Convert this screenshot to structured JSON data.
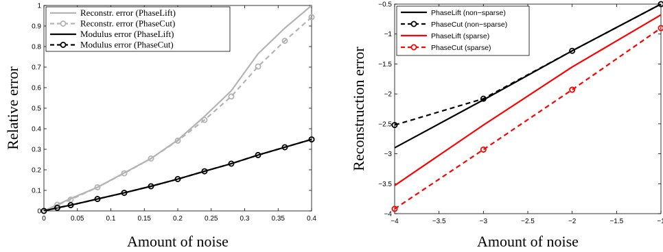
{
  "chart_data": [
    {
      "type": "line",
      "xlabel": "Amount of noise",
      "ylabel": "Relative error",
      "xlim": [
        0,
        0.4
      ],
      "ylim": [
        0,
        1
      ],
      "xticks": [
        0,
        0.05,
        0.1,
        0.15,
        0.2,
        0.25,
        0.3,
        0.35,
        0.4
      ],
      "xtick_labels": [
        "0",
        "0.05",
        "0.1",
        "0.15",
        "0.2",
        "0.25",
        "0.3",
        "0.35",
        "0.4"
      ],
      "yticks": [
        0,
        0.1,
        0.2,
        0.3,
        0.4,
        0.5,
        0.6,
        0.7,
        0.8,
        0.9,
        1
      ],
      "ytick_labels": [
        "0",
        "0.1",
        "0.2",
        "0.3",
        "0.4",
        "0.5",
        "0.6",
        "0.7",
        "0.8",
        "0.9",
        "1"
      ],
      "grid": false,
      "legend_position": "top-left",
      "series": [
        {
          "name": "Reconstr. error (PhaseLift)",
          "color": "#b3b3b3",
          "dash": "solid",
          "marker": "none",
          "x": [
            0,
            0.02,
            0.04,
            0.08,
            0.12,
            0.16,
            0.2,
            0.24,
            0.28,
            0.32,
            0.36,
            0.4
          ],
          "y": [
            0,
            0.03,
            0.06,
            0.115,
            0.185,
            0.255,
            0.345,
            0.46,
            0.585,
            0.765,
            0.89,
            1.0
          ]
        },
        {
          "name": "Reconstr. error (PhaseCut)",
          "color": "#b3b3b3",
          "dash": "dashed",
          "marker": "circle",
          "x": [
            0,
            0.02,
            0.04,
            0.08,
            0.12,
            0.16,
            0.2,
            0.24,
            0.28,
            0.32,
            0.36,
            0.4
          ],
          "y": [
            0,
            0.03,
            0.055,
            0.115,
            0.183,
            0.255,
            0.342,
            0.443,
            0.557,
            0.703,
            0.828,
            0.943
          ]
        },
        {
          "name": "Modulus error (PhaseLift)",
          "color": "#000000",
          "dash": "solid",
          "marker": "none",
          "x": [
            0,
            0.02,
            0.04,
            0.08,
            0.12,
            0.16,
            0.2,
            0.24,
            0.28,
            0.32,
            0.36,
            0.4
          ],
          "y": [
            0,
            0.015,
            0.028,
            0.058,
            0.088,
            0.12,
            0.155,
            0.193,
            0.23,
            0.272,
            0.31,
            0.348
          ]
        },
        {
          "name": "Modulus error (PhaseCut)",
          "color": "#000000",
          "dash": "dashed",
          "marker": "circle",
          "x": [
            0,
            0.02,
            0.04,
            0.08,
            0.12,
            0.16,
            0.2,
            0.24,
            0.28,
            0.32,
            0.36,
            0.4
          ],
          "y": [
            0,
            0.015,
            0.028,
            0.058,
            0.088,
            0.12,
            0.155,
            0.193,
            0.23,
            0.272,
            0.31,
            0.348
          ]
        }
      ]
    },
    {
      "type": "line",
      "xlabel": "Amount of noise",
      "ylabel": "Reconstruction error",
      "xlim": [
        -4,
        -1
      ],
      "ylim": [
        -4,
        -0.5
      ],
      "xticks": [
        -4,
        -3.5,
        -3,
        -2.5,
        -2,
        -1.5,
        -1
      ],
      "xtick_labels": [
        "−4",
        "−3.5",
        "−3",
        "−2.5",
        "−2",
        "−1.5",
        "−1"
      ],
      "yticks": [
        -4,
        -3.5,
        -3,
        -2.5,
        -2,
        -1.5,
        -1,
        -0.5
      ],
      "ytick_labels": [
        "−4",
        "−3.5",
        "−3",
        "−2.5",
        "−2",
        "−1.5",
        "−1",
        "−0.5"
      ],
      "grid": false,
      "legend_position": "top-left",
      "series": [
        {
          "name": "PhaseLift (non−sparse)",
          "color": "#000000",
          "dash": "solid",
          "marker": "none",
          "x": [
            -4,
            -3,
            -2,
            -1
          ],
          "y": [
            -2.9,
            -2.1,
            -1.28,
            -0.5
          ]
        },
        {
          "name": "PhaseCut (non−sparse)",
          "color": "#000000",
          "dash": "dashed",
          "marker": "circle",
          "x": [
            -4,
            -3,
            -2,
            -1
          ],
          "y": [
            -2.52,
            -2.08,
            -1.28,
            -0.5
          ]
        },
        {
          "name": "PhaseLift (sparse)",
          "color": "#ff0000",
          "dash": "solid",
          "marker": "none",
          "x": [
            -4,
            -3,
            -2,
            -1
          ],
          "y": [
            -3.53,
            -2.52,
            -1.55,
            -0.68
          ]
        },
        {
          "name": "PhaseCut (sparse)",
          "color": "#ff0000",
          "dash": "dashed",
          "marker": "circle",
          "x": [
            -4,
            -3,
            -2,
            -1
          ],
          "y": [
            -3.92,
            -2.93,
            -1.93,
            -0.9
          ]
        }
      ]
    }
  ]
}
